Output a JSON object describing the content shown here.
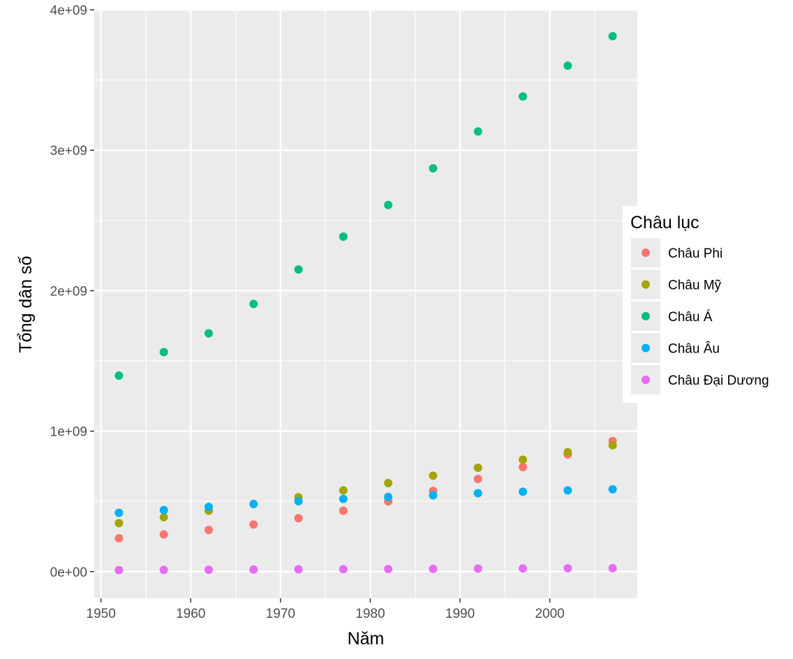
{
  "chart_data": {
    "type": "scatter",
    "xlabel": "Năm",
    "ylabel": "Tổng dân số",
    "xlim": [
      1949.25,
      2009.75
    ],
    "ylim": [
      -190000000,
      4000000000
    ],
    "x_ticks": [
      1950,
      1960,
      1970,
      1980,
      1990,
      2000
    ],
    "x_tick_labels": [
      "1950",
      "1960",
      "1970",
      "1980",
      "1990",
      "2000"
    ],
    "y_ticks": [
      0,
      1000000000,
      2000000000,
      3000000000,
      4000000000
    ],
    "y_tick_labels": [
      "0e+00",
      "1e+09",
      "2e+09",
      "3e+09",
      "4e+09"
    ],
    "grid": true,
    "legend": {
      "title": "Châu lục",
      "position": "right"
    },
    "x": [
      1952,
      1957,
      1962,
      1967,
      1972,
      1977,
      1982,
      1987,
      1992,
      1997,
      2002,
      2007
    ],
    "series": [
      {
        "name": "Châu Phi",
        "color": "#F8766D",
        "values": [
          237600000,
          264800000,
          296500000,
          335300000,
          379900000,
          434000000,
          499300000,
          574800000,
          659100000,
          743800000,
          833700000,
          929500000
        ]
      },
      {
        "name": "Châu Mỹ",
        "color": "#A3A500",
        "values": [
          345200000,
          386900000,
          433300000,
          480700000,
          529400000,
          578100000,
          630300000,
          682800000,
          739300000,
          796900000,
          849800000,
          898900000
        ]
      },
      {
        "name": "Châu Á",
        "color": "#00BF7D",
        "values": [
          1395400000,
          1562800000,
          1696400000,
          1905700000,
          2150900000,
          2384500000,
          2610100000,
          2871200000,
          3133300000,
          3383300000,
          3601800000,
          3811900000
        ]
      },
      {
        "name": "Châu Âu",
        "color": "#00B0F6",
        "values": [
          418100000,
          437900000,
          460400000,
          481200000,
          500600000,
          517200000,
          531300000,
          543100000,
          558000000,
          568900000,
          578200000,
          586100000
        ]
      },
      {
        "name": "Châu Đại Dương",
        "color": "#E76BF3",
        "values": [
          10700000,
          11900000,
          13000000,
          14600000,
          16100000,
          17200000,
          18400000,
          19600000,
          21000000,
          22200000,
          23500000,
          24500000
        ]
      }
    ]
  }
}
